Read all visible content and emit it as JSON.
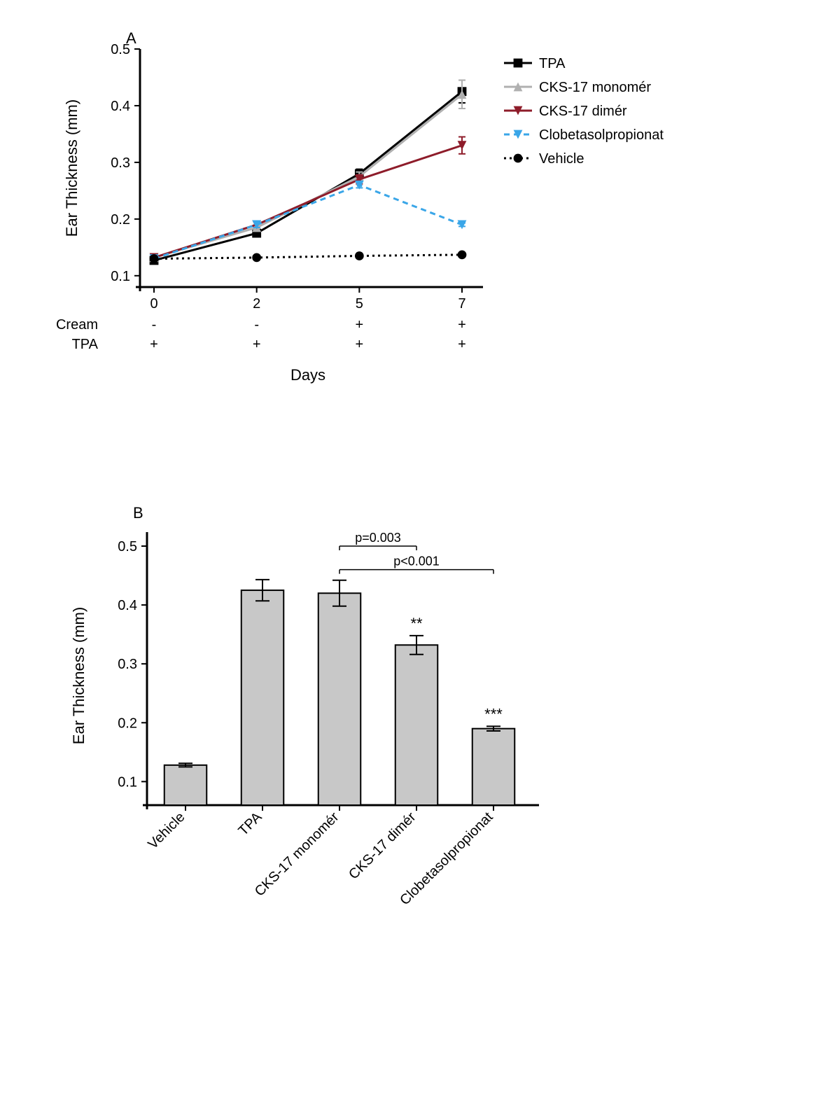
{
  "panelA": {
    "label": "A",
    "ylabel": "Ear Thickness (mm)",
    "xlabel": "Days",
    "ylim": [
      0.08,
      0.5
    ],
    "yticks": [
      0.1,
      0.2,
      0.3,
      0.4,
      0.5
    ],
    "xticks": [
      0,
      2,
      5,
      7
    ],
    "xtick_positions": [
      0,
      1,
      2,
      3
    ],
    "cream_row_label": "Cream",
    "tpa_row_label": "TPA",
    "cream_row": [
      "-",
      "-",
      "+",
      "+"
    ],
    "tpa_row": [
      "+",
      "+",
      "+",
      "+"
    ],
    "series": [
      {
        "name": "TPA",
        "color": "#000000",
        "marker": "square",
        "dash": "none",
        "y": [
          0.127,
          0.175,
          0.28,
          0.425
        ],
        "err": [
          0.003,
          0.005,
          0.008,
          0.02
        ]
      },
      {
        "name": "CKS-17 monomér",
        "color": "#b0b0b0",
        "marker": "triangle-up",
        "dash": "none",
        "y": [
          0.132,
          0.185,
          0.275,
          0.42
        ],
        "err": [
          0.003,
          0.005,
          0.008,
          0.025
        ]
      },
      {
        "name": "CKS-17 dimér",
        "color": "#8e1c2a",
        "marker": "triangle-down",
        "dash": "none",
        "y": [
          0.132,
          0.19,
          0.27,
          0.33
        ],
        "err": [
          0.003,
          0.005,
          0.008,
          0.015
        ]
      },
      {
        "name": "Clobetasolpropionat",
        "color": "#3aa6e8",
        "marker": "triangle-down",
        "dash": "8,6",
        "y": [
          0.13,
          0.19,
          0.26,
          0.19
        ],
        "err": [
          0.003,
          0.005,
          0.005,
          0.003
        ]
      },
      {
        "name": "Vehicle",
        "color": "#000000",
        "marker": "circle",
        "dash": "3,5",
        "y": [
          0.13,
          0.132,
          0.135,
          0.137
        ],
        "err": [
          0.002,
          0.002,
          0.002,
          0.002
        ]
      }
    ],
    "legend": [
      "TPA",
      "CKS-17 monomér",
      "CKS-17 dimér",
      "Clobetasolpropionat",
      "Vehicle"
    ],
    "line_width": 3,
    "marker_size": 8,
    "axis_color": "#000000",
    "background_color": "#ffffff",
    "label_fontsize": 22,
    "tick_fontsize": 20,
    "legend_fontsize": 20
  },
  "panelB": {
    "label": "B",
    "ylabel": "Ear Thickness (mm)",
    "ylim": [
      0.06,
      0.5
    ],
    "yticks": [
      0.1,
      0.2,
      0.3,
      0.4,
      0.5
    ],
    "categories": [
      "Vehicle",
      "TPA",
      "CKS-17 monomér",
      "CKS-17 dimér",
      "Clobetasolpropionat"
    ],
    "values": [
      0.128,
      0.425,
      0.42,
      0.332,
      0.19
    ],
    "errors": [
      0.003,
      0.018,
      0.022,
      0.016,
      0.004
    ],
    "bar_color": "#c8c8c8",
    "bar_stroke": "#000000",
    "bar_width": 0.55,
    "stars": [
      "",
      "",
      "",
      "**",
      "***"
    ],
    "pvals": [
      {
        "text": "p=0.003",
        "from": 2,
        "to": 3,
        "y": 0.5
      },
      {
        "text": "p<0.001",
        "from": 2,
        "to": 4,
        "y": 0.46
      }
    ],
    "axis_color": "#000000",
    "label_fontsize": 22,
    "tick_fontsize": 20,
    "annot_fontsize": 18
  }
}
